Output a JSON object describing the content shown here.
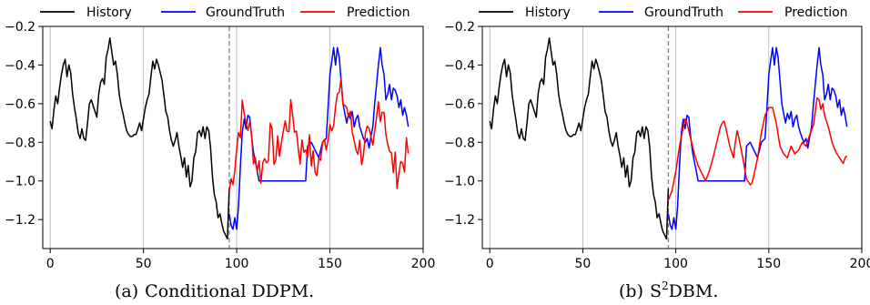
{
  "colors": {
    "history": "#000000",
    "ground_truth": "#0000ff",
    "prediction": "#ff0000",
    "grid": "#b0b0b0",
    "divider": "#808080"
  },
  "legend": {
    "history": "History",
    "ground_truth": "GroundTruth",
    "prediction": "Prediction"
  },
  "captions": [
    {
      "label": "(a)",
      "text": "Conditional DDPM."
    },
    {
      "label": "(b)",
      "text": "DBM.",
      "prefix": "S",
      "superscript": "2"
    }
  ],
  "chart_data": [
    {
      "type": "line",
      "title": "",
      "xlabel": "",
      "ylabel": "",
      "xlim": [
        -4,
        200
      ],
      "ylim": [
        -1.35,
        -0.2
      ],
      "xticks": [
        0,
        50,
        100,
        150,
        200
      ],
      "yticks": [
        -0.2,
        -0.4,
        -0.6,
        -0.8,
        -1.0,
        -1.2
      ],
      "ytick_labels": [
        "−0.2",
        "−0.4",
        "−0.6",
        "−0.8",
        "−1.0",
        "−1.2"
      ],
      "grid": "vertical at x = 0, 50, 100, 150",
      "divider_x": 96,
      "legend_position": "top, outside plot",
      "series": [
        {
          "name": "History",
          "color": "#000000",
          "points": [
            [
              0,
              -0.69
            ],
            [
              1,
              -0.73
            ],
            [
              2,
              -0.63
            ],
            [
              3,
              -0.56
            ],
            [
              4,
              -0.6
            ],
            [
              5,
              -0.52
            ],
            [
              6,
              -0.45
            ],
            [
              7,
              -0.4
            ],
            [
              8,
              -0.37
            ],
            [
              9,
              -0.46
            ],
            [
              10,
              -0.4
            ],
            [
              11,
              -0.44
            ],
            [
              12,
              -0.55
            ],
            [
              13,
              -0.62
            ],
            [
              14,
              -0.68
            ],
            [
              15,
              -0.75
            ],
            [
              16,
              -0.78
            ],
            [
              17,
              -0.73
            ],
            [
              18,
              -0.78
            ],
            [
              19,
              -0.79
            ],
            [
              20,
              -0.7
            ],
            [
              21,
              -0.6
            ],
            [
              22,
              -0.58
            ],
            [
              23,
              -0.61
            ],
            [
              24,
              -0.64
            ],
            [
              25,
              -0.67
            ],
            [
              26,
              -0.55
            ],
            [
              27,
              -0.49
            ],
            [
              28,
              -0.47
            ],
            [
              29,
              -0.5
            ],
            [
              30,
              -0.36
            ],
            [
              31,
              -0.32
            ],
            [
              32,
              -0.26
            ],
            [
              33,
              -0.33
            ],
            [
              34,
              -0.4
            ],
            [
              35,
              -0.38
            ],
            [
              36,
              -0.45
            ],
            [
              37,
              -0.55
            ],
            [
              38,
              -0.61
            ],
            [
              39,
              -0.65
            ],
            [
              40,
              -0.7
            ],
            [
              41,
              -0.74
            ],
            [
              42,
              -0.76
            ],
            [
              43,
              -0.77
            ],
            [
              44,
              -0.77
            ],
            [
              45,
              -0.76
            ],
            [
              46,
              -0.76
            ],
            [
              47,
              -0.73
            ],
            [
              48,
              -0.7
            ],
            [
              49,
              -0.74
            ],
            [
              50,
              -0.68
            ],
            [
              51,
              -0.62
            ],
            [
              52,
              -0.58
            ],
            [
              53,
              -0.55
            ],
            [
              54,
              -0.46
            ],
            [
              55,
              -0.38
            ],
            [
              56,
              -0.42
            ],
            [
              57,
              -0.37
            ],
            [
              58,
              -0.4
            ],
            [
              59,
              -0.44
            ],
            [
              60,
              -0.48
            ],
            [
              61,
              -0.56
            ],
            [
              62,
              -0.64
            ],
            [
              63,
              -0.67
            ],
            [
              64,
              -0.74
            ],
            [
              65,
              -0.79
            ],
            [
              66,
              -0.82
            ],
            [
              67,
              -0.79
            ],
            [
              68,
              -0.75
            ],
            [
              69,
              -0.82
            ],
            [
              70,
              -0.87
            ],
            [
              71,
              -0.93
            ],
            [
              72,
              -0.88
            ],
            [
              73,
              -0.98
            ],
            [
              74,
              -0.92
            ],
            [
              75,
              -1.03
            ],
            [
              76,
              -1.0
            ],
            [
              77,
              -0.88
            ],
            [
              78,
              -0.85
            ],
            [
              79,
              -0.75
            ],
            [
              80,
              -0.74
            ],
            [
              81,
              -0.77
            ],
            [
              82,
              -0.72
            ],
            [
              83,
              -0.78
            ],
            [
              84,
              -0.72
            ],
            [
              85,
              -0.74
            ],
            [
              86,
              -0.83
            ],
            [
              87,
              -0.98
            ],
            [
              88,
              -1.07
            ],
            [
              89,
              -1.11
            ],
            [
              90,
              -1.19
            ],
            [
              91,
              -1.17
            ],
            [
              92,
              -1.22
            ],
            [
              93,
              -1.26
            ],
            [
              94,
              -1.28
            ],
            [
              95,
              -1.3
            ],
            [
              96,
              -1.04
            ]
          ]
        },
        {
          "name": "GroundTruth",
          "color": "#0000ff",
          "points": [
            [
              96,
              -1.17
            ],
            [
              97,
              -1.23
            ],
            [
              98,
              -1.25
            ],
            [
              99,
              -1.19
            ],
            [
              100,
              -1.25
            ],
            [
              101,
              -1.13
            ],
            [
              102,
              -0.92
            ],
            [
              103,
              -0.75
            ],
            [
              104,
              -0.68
            ],
            [
              105,
              -0.73
            ],
            [
              106,
              -0.66
            ],
            [
              107,
              -0.67
            ],
            [
              108,
              -0.77
            ],
            [
              109,
              -0.85
            ],
            [
              110,
              -0.9
            ],
            [
              111,
              -0.95
            ],
            [
              112,
              -1.0
            ],
            [
              113,
              -1.0
            ],
            [
              120,
              -1.0
            ],
            [
              127,
              -1.0
            ],
            [
              137,
              -1.0
            ],
            [
              138,
              -0.82
            ],
            [
              140,
              -0.8
            ],
            [
              142,
              -0.84
            ],
            [
              144,
              -0.88
            ],
            [
              146,
              -0.8
            ],
            [
              148,
              -0.78
            ],
            [
              149,
              -0.62
            ],
            [
              150,
              -0.45
            ],
            [
              151,
              -0.38
            ],
            [
              152,
              -0.31
            ],
            [
              153,
              -0.4
            ],
            [
              154,
              -0.31
            ],
            [
              155,
              -0.36
            ],
            [
              156,
              -0.48
            ],
            [
              157,
              -0.6
            ],
            [
              158,
              -0.65
            ],
            [
              159,
              -0.7
            ],
            [
              160,
              -0.65
            ],
            [
              161,
              -0.68
            ],
            [
              162,
              -0.64
            ],
            [
              163,
              -0.72
            ],
            [
              164,
              -0.68
            ],
            [
              165,
              -0.66
            ],
            [
              166,
              -0.72
            ],
            [
              167,
              -0.75
            ],
            [
              168,
              -0.78
            ],
            [
              169,
              -0.8
            ],
            [
              170,
              -0.78
            ],
            [
              171,
              -0.83
            ],
            [
              172,
              -0.77
            ],
            [
              173,
              -0.72
            ],
            [
              174,
              -0.6
            ],
            [
              175,
              -0.5
            ],
            [
              176,
              -0.4
            ],
            [
              177,
              -0.31
            ],
            [
              178,
              -0.4
            ],
            [
              179,
              -0.45
            ],
            [
              180,
              -0.58
            ],
            [
              181,
              -0.55
            ],
            [
              182,
              -0.5
            ],
            [
              183,
              -0.58
            ],
            [
              184,
              -0.52
            ],
            [
              185,
              -0.53
            ],
            [
              186,
              -0.56
            ],
            [
              187,
              -0.62
            ],
            [
              188,
              -0.58
            ],
            [
              189,
              -0.66
            ],
            [
              190,
              -0.62
            ],
            [
              191,
              -0.66
            ],
            [
              192,
              -0.72
            ]
          ]
        }
      ],
      "prediction": {
        "name": "Prediction",
        "color": "#ff0000",
        "seed": 7,
        "anchors": [
          [
            96,
            -1.05
          ],
          [
            99,
            -0.9
          ],
          [
            101,
            -0.75
          ],
          [
            103,
            -0.65
          ],
          [
            106,
            -0.7
          ],
          [
            110,
            -0.88
          ],
          [
            113,
            -0.95
          ],
          [
            118,
            -0.78
          ],
          [
            121,
            -0.88
          ],
          [
            126,
            -0.72
          ],
          [
            130,
            -0.65
          ],
          [
            134,
            -0.85
          ],
          [
            138,
            -0.8
          ],
          [
            142,
            -0.95
          ],
          [
            146,
            -0.85
          ],
          [
            150,
            -0.7
          ],
          [
            153,
            -0.6
          ],
          [
            156,
            -0.55
          ],
          [
            159,
            -0.62
          ],
          [
            163,
            -0.78
          ],
          [
            167,
            -0.85
          ],
          [
            170,
            -0.78
          ],
          [
            173,
            -0.88
          ],
          [
            176,
            -0.6
          ],
          [
            179,
            -0.62
          ],
          [
            182,
            -0.88
          ],
          [
            186,
            -0.95
          ],
          [
            190,
            -0.88
          ],
          [
            192,
            -0.85
          ]
        ],
        "noise": 0.09,
        "x_end": 192
      }
    },
    {
      "type": "line",
      "title": "",
      "xlabel": "",
      "ylabel": "",
      "xlim": [
        -4,
        200
      ],
      "ylim": [
        -1.35,
        -0.2
      ],
      "xticks": [
        0,
        50,
        100,
        150,
        200
      ],
      "yticks": [
        -0.2,
        -0.4,
        -0.6,
        -0.8,
        -1.0,
        -1.2
      ],
      "ytick_labels": [
        "−0.2",
        "−0.4",
        "−0.6",
        "−0.8",
        "−1.0",
        "−1.2"
      ],
      "grid": "vertical at x = 0, 50, 100, 150",
      "divider_x": 96,
      "legend_position": "top, outside plot",
      "series": [
        {
          "name": "History",
          "color": "#000000",
          "points": "same_as_panel_a"
        },
        {
          "name": "GroundTruth",
          "color": "#0000ff",
          "points": "same_as_panel_a"
        },
        {
          "name": "Prediction",
          "color": "#ff0000",
          "points": [
            [
              96,
              -1.1
            ],
            [
              98,
              -1.05
            ],
            [
              100,
              -0.95
            ],
            [
              102,
              -0.82
            ],
            [
              104,
              -0.72
            ],
            [
              105,
              -0.68
            ],
            [
              106,
              -0.7
            ],
            [
              108,
              -0.78
            ],
            [
              110,
              -0.86
            ],
            [
              112,
              -0.92
            ],
            [
              114,
              -0.96
            ],
            [
              116,
              -1.0
            ],
            [
              118,
              -0.95
            ],
            [
              120,
              -0.88
            ],
            [
              122,
              -0.8
            ],
            [
              124,
              -0.72
            ],
            [
              125,
              -0.7
            ],
            [
              126,
              -0.69
            ],
            [
              127,
              -0.73
            ],
            [
              129,
              -0.82
            ],
            [
              131,
              -0.88
            ],
            [
              132,
              -0.8
            ],
            [
              133,
              -0.74
            ],
            [
              134,
              -0.78
            ],
            [
              136,
              -0.88
            ],
            [
              138,
              -0.99
            ],
            [
              140,
              -1.02
            ],
            [
              141,
              -1.01
            ],
            [
              142,
              -0.97
            ],
            [
              144,
              -0.88
            ],
            [
              146,
              -0.75
            ],
            [
              148,
              -0.66
            ],
            [
              150,
              -0.62
            ],
            [
              152,
              -0.62
            ],
            [
              154,
              -0.7
            ],
            [
              156,
              -0.82
            ],
            [
              158,
              -0.86
            ],
            [
              160,
              -0.88
            ],
            [
              162,
              -0.82
            ],
            [
              164,
              -0.86
            ],
            [
              166,
              -0.84
            ],
            [
              168,
              -0.8
            ],
            [
              170,
              -0.82
            ],
            [
              172,
              -0.76
            ],
            [
              174,
              -0.71
            ],
            [
              176,
              -0.57
            ],
            [
              177,
              -0.58
            ],
            [
              178,
              -0.63
            ],
            [
              179,
              -0.6
            ],
            [
              180,
              -0.66
            ],
            [
              182,
              -0.72
            ],
            [
              184,
              -0.8
            ],
            [
              186,
              -0.85
            ],
            [
              188,
              -0.88
            ],
            [
              190,
              -0.91
            ],
            [
              191,
              -0.88
            ],
            [
              192,
              -0.87
            ]
          ]
        }
      ]
    }
  ]
}
